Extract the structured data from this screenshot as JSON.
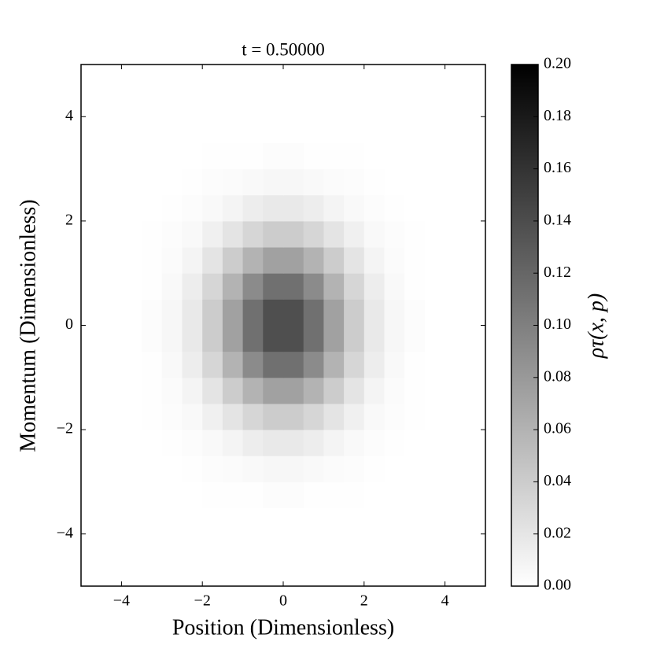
{
  "chart_data": {
    "type": "heatmap",
    "title": "t = 0.50000",
    "x_label": "Position (Dimensionless)",
    "y_label": "Momentum (Dimensionless)",
    "colorbar_label": "ρτ(x, p)",
    "colormap": [
      "#ffffff",
      "#000000"
    ],
    "x": [
      -4.75,
      -4.25,
      -3.75,
      -3.25,
      -2.75,
      -2.25,
      -1.75,
      -1.25,
      -0.75,
      -0.25,
      0.25,
      0.75,
      1.25,
      1.75,
      2.25,
      2.75,
      3.25,
      3.75,
      4.25,
      4.75
    ],
    "y": [
      -4.75,
      -4.25,
      -3.75,
      -3.25,
      -2.75,
      -2.25,
      -1.75,
      -1.25,
      -0.75,
      -0.25,
      0.25,
      0.75,
      1.25,
      1.75,
      2.25,
      2.75,
      3.25,
      3.75,
      4.25,
      4.75
    ],
    "values": [
      [
        0,
        0,
        0,
        0,
        0,
        0,
        0,
        0,
        0,
        0,
        0,
        0,
        0,
        0,
        0,
        0,
        0,
        0,
        0,
        0
      ],
      [
        0,
        0,
        0,
        0,
        0,
        0,
        0,
        0,
        0,
        0,
        0,
        0,
        0,
        0,
        0,
        0,
        0,
        0,
        0,
        0
      ],
      [
        0,
        0,
        0,
        0,
        0,
        0,
        0,
        0,
        0,
        0,
        0,
        0,
        0,
        0,
        0,
        0,
        0,
        0,
        0,
        0
      ],
      [
        0,
        0,
        0,
        0,
        0,
        0,
        0.001,
        0.001,
        0.001,
        0.002,
        0.002,
        0.001,
        0.001,
        0.001,
        0,
        0,
        0,
        0,
        0,
        0
      ],
      [
        0,
        0,
        0,
        0,
        0,
        0.001,
        0.002,
        0.003,
        0.005,
        0.006,
        0.006,
        0.005,
        0.003,
        0.002,
        0.001,
        0,
        0,
        0,
        0,
        0
      ],
      [
        0,
        0,
        0,
        0,
        0.001,
        0.002,
        0.005,
        0.009,
        0.014,
        0.017,
        0.017,
        0.014,
        0.009,
        0.005,
        0.002,
        0.001,
        0,
        0,
        0,
        0
      ],
      [
        0,
        0,
        0,
        0.001,
        0.002,
        0.005,
        0.012,
        0.021,
        0.032,
        0.04,
        0.04,
        0.032,
        0.021,
        0.012,
        0.005,
        0.002,
        0.001,
        0,
        0,
        0
      ],
      [
        0,
        0,
        0,
        0.001,
        0.003,
        0.009,
        0.021,
        0.04,
        0.06,
        0.074,
        0.074,
        0.06,
        0.04,
        0.021,
        0.009,
        0.003,
        0.001,
        0,
        0,
        0
      ],
      [
        0,
        0,
        0,
        0.001,
        0.005,
        0.014,
        0.032,
        0.06,
        0.091,
        0.112,
        0.112,
        0.091,
        0.06,
        0.032,
        0.014,
        0.005,
        0.001,
        0,
        0,
        0
      ],
      [
        0,
        0,
        0,
        0.002,
        0.006,
        0.017,
        0.04,
        0.074,
        0.112,
        0.138,
        0.138,
        0.112,
        0.074,
        0.04,
        0.017,
        0.006,
        0.002,
        0,
        0,
        0
      ],
      [
        0,
        0,
        0,
        0.002,
        0.006,
        0.017,
        0.04,
        0.074,
        0.112,
        0.138,
        0.138,
        0.112,
        0.074,
        0.04,
        0.017,
        0.006,
        0.002,
        0,
        0,
        0
      ],
      [
        0,
        0,
        0,
        0.001,
        0.005,
        0.014,
        0.032,
        0.06,
        0.091,
        0.112,
        0.112,
        0.091,
        0.06,
        0.032,
        0.014,
        0.005,
        0.001,
        0,
        0,
        0
      ],
      [
        0,
        0,
        0,
        0.001,
        0.003,
        0.009,
        0.021,
        0.04,
        0.06,
        0.074,
        0.074,
        0.06,
        0.04,
        0.021,
        0.009,
        0.003,
        0.001,
        0,
        0,
        0
      ],
      [
        0,
        0,
        0,
        0.001,
        0.002,
        0.005,
        0.012,
        0.021,
        0.032,
        0.04,
        0.04,
        0.032,
        0.021,
        0.012,
        0.005,
        0.002,
        0.001,
        0,
        0,
        0
      ],
      [
        0,
        0,
        0,
        0,
        0.001,
        0.002,
        0.005,
        0.009,
        0.014,
        0.017,
        0.017,
        0.014,
        0.009,
        0.005,
        0.002,
        0.001,
        0,
        0,
        0,
        0
      ],
      [
        0,
        0,
        0,
        0,
        0,
        0.001,
        0.002,
        0.003,
        0.005,
        0.006,
        0.006,
        0.005,
        0.003,
        0.002,
        0.001,
        0,
        0,
        0,
        0,
        0
      ],
      [
        0,
        0,
        0,
        0,
        0,
        0,
        0.001,
        0.001,
        0.001,
        0.002,
        0.002,
        0.001,
        0.001,
        0.001,
        0,
        0,
        0,
        0,
        0,
        0
      ],
      [
        0,
        0,
        0,
        0,
        0,
        0,
        0,
        0,
        0,
        0,
        0,
        0,
        0,
        0,
        0,
        0,
        0,
        0,
        0,
        0
      ],
      [
        0,
        0,
        0,
        0,
        0,
        0,
        0,
        0,
        0,
        0,
        0,
        0,
        0,
        0,
        0,
        0,
        0,
        0,
        0,
        0
      ],
      [
        0,
        0,
        0,
        0,
        0,
        0,
        0,
        0,
        0,
        0,
        0,
        0,
        0,
        0,
        0,
        0,
        0,
        0,
        0,
        0
      ]
    ],
    "xlim": [
      -5,
      5
    ],
    "ylim": [
      -5,
      5
    ],
    "xticks": [
      {
        "value": -4,
        "label": "−4"
      },
      {
        "value": -2,
        "label": "−2"
      },
      0,
      2,
      4
    ],
    "yticks": [
      {
        "value": -4,
        "label": "−4"
      },
      {
        "value": -2,
        "label": "−2"
      },
      0,
      2,
      4
    ],
    "clim": [
      0,
      0.2
    ],
    "cticks": [
      {
        "value": 0,
        "label": "0.00"
      },
      {
        "value": 0.02,
        "label": "0.02"
      },
      {
        "value": 0.04,
        "label": "0.04"
      },
      {
        "value": 0.06,
        "label": "0.06"
      },
      {
        "value": 0.08,
        "label": "0.08"
      },
      {
        "value": 0.1,
        "label": "0.10"
      },
      {
        "value": 0.12,
        "label": "0.12"
      },
      {
        "value": 0.14,
        "label": "0.14"
      },
      {
        "value": 0.16,
        "label": "0.16"
      },
      {
        "value": 0.18,
        "label": "0.18"
      },
      {
        "value": 0.2,
        "label": "0.20"
      }
    ]
  }
}
